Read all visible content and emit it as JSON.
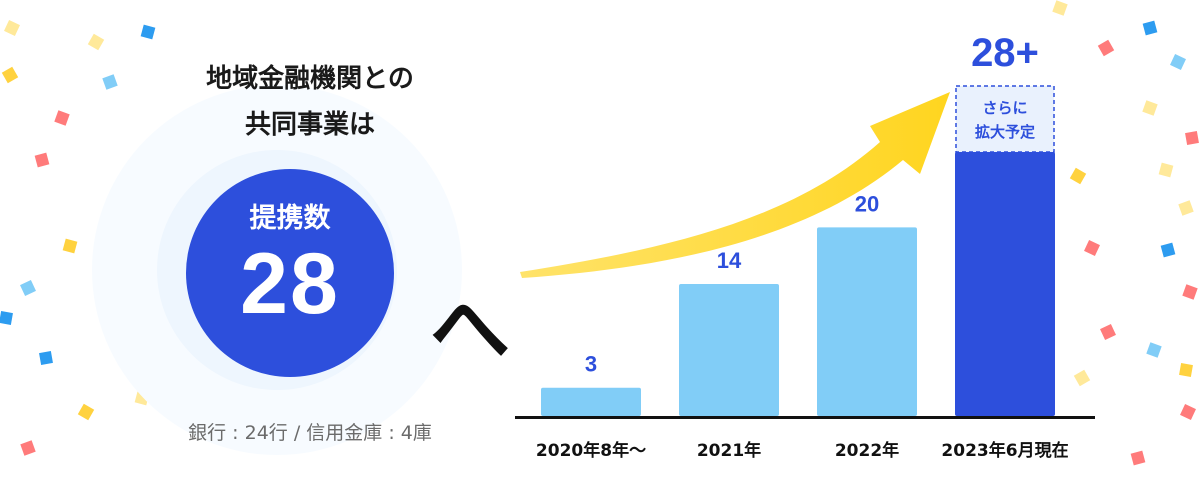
{
  "headline": {
    "line1": "地域金融機関との",
    "line2": "共同事業は"
  },
  "circle": {
    "label": "提携数",
    "value": "28"
  },
  "connector": "へ",
  "note": "銀行 : 24行 / 信用金庫 : 4庫",
  "colors": {
    "bar_light": "#81cdf7",
    "bar_dark": "#2d4fdc",
    "value_text": "#2d4fdc",
    "arrow": "#ffd92e",
    "axis": "#111111",
    "circle": "#2d4fdc"
  },
  "chart_data": {
    "type": "bar",
    "categories": [
      "2020年8年〜",
      "2021年",
      "2022年",
      "2023年6月現在"
    ],
    "values": [
      3,
      14,
      20,
      28
    ],
    "value_labels": [
      "3",
      "14",
      "20",
      "28+"
    ],
    "highlight_index": 3,
    "extension_label": [
      "さらに",
      "拡大予定"
    ],
    "ylim": [
      0,
      28
    ],
    "trend_arrow": true,
    "grid": false
  }
}
